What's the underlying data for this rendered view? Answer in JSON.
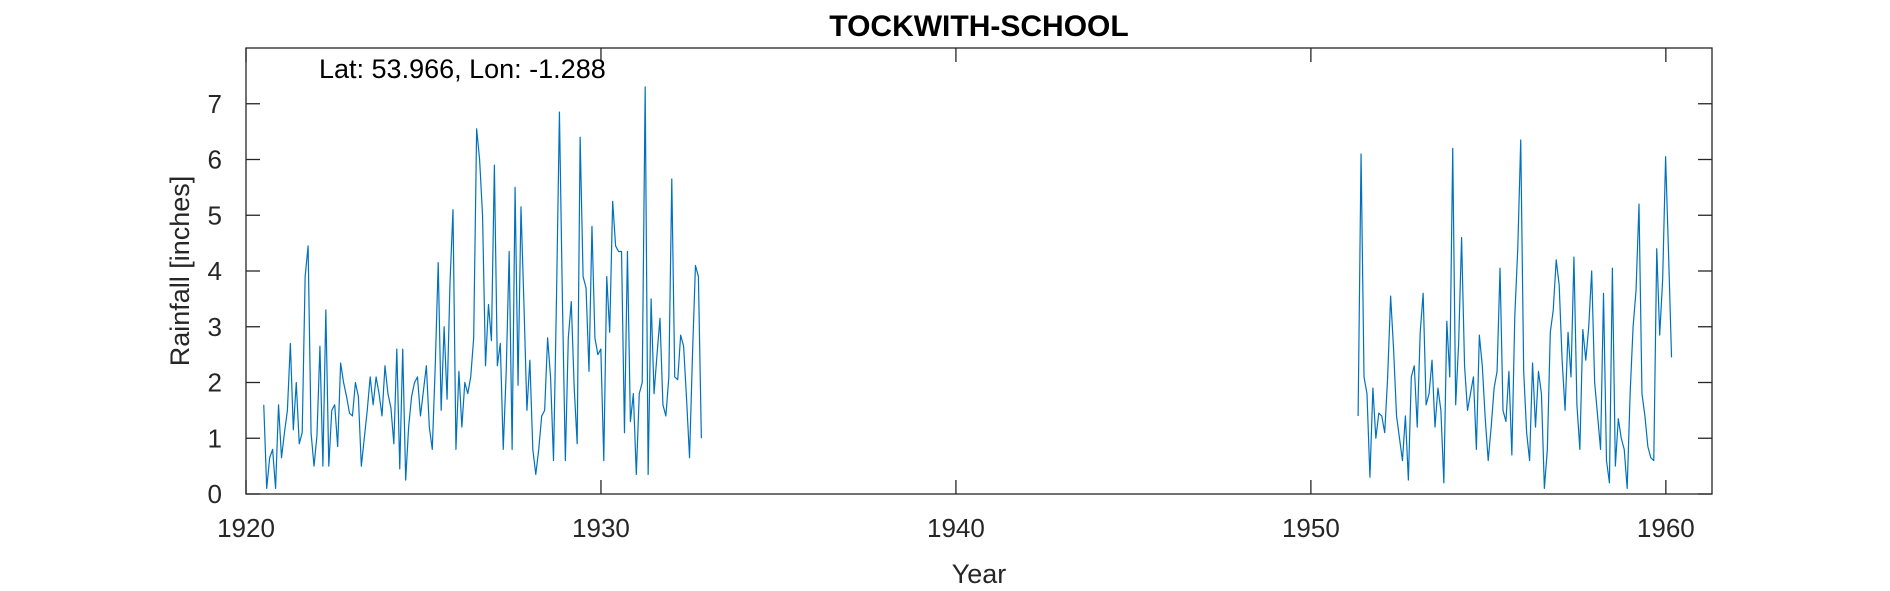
{
  "chart_data": {
    "type": "line",
    "title": "TOCKWITH-SCHOOL",
    "xlabel": "Year",
    "ylabel": "Rainfall [inches]",
    "annotation": "Lat: 53.966, Lon: -1.288",
    "xlim": [
      1920,
      1961.3
    ],
    "ylim": [
      0,
      8
    ],
    "xticks": [
      1920,
      1930,
      1940,
      1950,
      1960
    ],
    "yticks": [
      0,
      1,
      2,
      3,
      4,
      5,
      6,
      7
    ],
    "grid": false,
    "line_color": "#0072BD",
    "series": [
      {
        "segments": [
          {
            "start": 1920.5,
            "step": 0.0833,
            "values": [
              1.6,
              0.1,
              0.65,
              0.8,
              0.1,
              1.6,
              0.65,
              1.1,
              1.5,
              2.7,
              1.15,
              2.0,
              0.9,
              1.1,
              3.9,
              4.45,
              1.1,
              0.5,
              1.05,
              2.65,
              0.5,
              3.3,
              0.5,
              1.5,
              1.6,
              0.85,
              2.35,
              2.0,
              1.75,
              1.45,
              1.4,
              2.0,
              1.75,
              0.5,
              1.0,
              1.5,
              2.1,
              1.6,
              2.1,
              1.8,
              1.4,
              2.3,
              1.8,
              1.55,
              0.9,
              2.6,
              0.45,
              2.6,
              0.25,
              1.2,
              1.75,
              2.0,
              2.1,
              1.4,
              1.85,
              2.3,
              1.2,
              0.8,
              2.3,
              4.15,
              1.5,
              3.0,
              1.7,
              3.8,
              5.1,
              0.8,
              2.2,
              1.2,
              2.0,
              1.8,
              2.1,
              2.8,
              6.55,
              6.0,
              5.0,
              2.3,
              3.4,
              2.75,
              5.9,
              2.3,
              2.7,
              0.8,
              2.2,
              4.35,
              0.8,
              5.5,
              1.95,
              5.15,
              3.4,
              1.5,
              2.4,
              0.8,
              0.35,
              0.8,
              1.4,
              1.5,
              2.8,
              2.1,
              0.6,
              3.5,
              6.85,
              3.5,
              0.6,
              2.8,
              3.45,
              1.9,
              0.9,
              6.4,
              3.9,
              3.7,
              2.2,
              4.8,
              2.8,
              2.5,
              2.6,
              0.6,
              3.9,
              2.9,
              5.25,
              4.45,
              4.35,
              4.35,
              1.1,
              4.35,
              1.3,
              1.8,
              0.35,
              1.8,
              2.0,
              7.3,
              0.35,
              3.5,
              1.8,
              2.5,
              3.15,
              1.6,
              1.4,
              2.1,
              5.65,
              2.1,
              2.05,
              2.85,
              2.65,
              1.7,
              0.65,
              2.5,
              4.1,
              3.9,
              1.0
            ]
          },
          {
            "start": 1951.33,
            "step": 0.0833,
            "values": [
              1.4,
              6.1,
              2.1,
              1.8,
              0.3,
              1.9,
              1.0,
              1.45,
              1.4,
              1.1,
              2.1,
              3.55,
              2.6,
              1.4,
              1.0,
              0.6,
              1.4,
              0.25,
              2.1,
              2.3,
              1.2,
              2.9,
              3.6,
              1.6,
              1.8,
              2.4,
              1.2,
              1.9,
              1.5,
              0.2,
              3.1,
              2.1,
              6.2,
              1.6,
              2.7,
              4.6,
              2.3,
              1.5,
              1.8,
              2.1,
              0.8,
              2.85,
              2.3,
              1.35,
              0.6,
              1.2,
              1.9,
              2.2,
              4.05,
              1.5,
              1.3,
              2.2,
              0.7,
              3.2,
              4.4,
              6.35,
              2.2,
              1.1,
              0.6,
              2.35,
              1.2,
              2.2,
              1.8,
              0.1,
              0.8,
              2.9,
              3.3,
              4.2,
              3.75,
              2.4,
              1.5,
              2.9,
              2.1,
              4.25,
              1.6,
              0.8,
              2.95,
              2.4,
              3.0,
              4.0,
              2.0,
              1.4,
              0.8,
              3.6,
              0.6,
              0.2,
              4.05,
              0.5,
              1.35,
              1.0,
              0.8,
              0.1,
              1.8,
              3.0,
              3.65,
              5.2,
              1.8,
              1.4,
              0.85,
              0.65,
              0.6,
              4.4,
              2.85,
              3.85,
              6.05,
              4.3,
              2.45
            ]
          }
        ]
      }
    ]
  }
}
